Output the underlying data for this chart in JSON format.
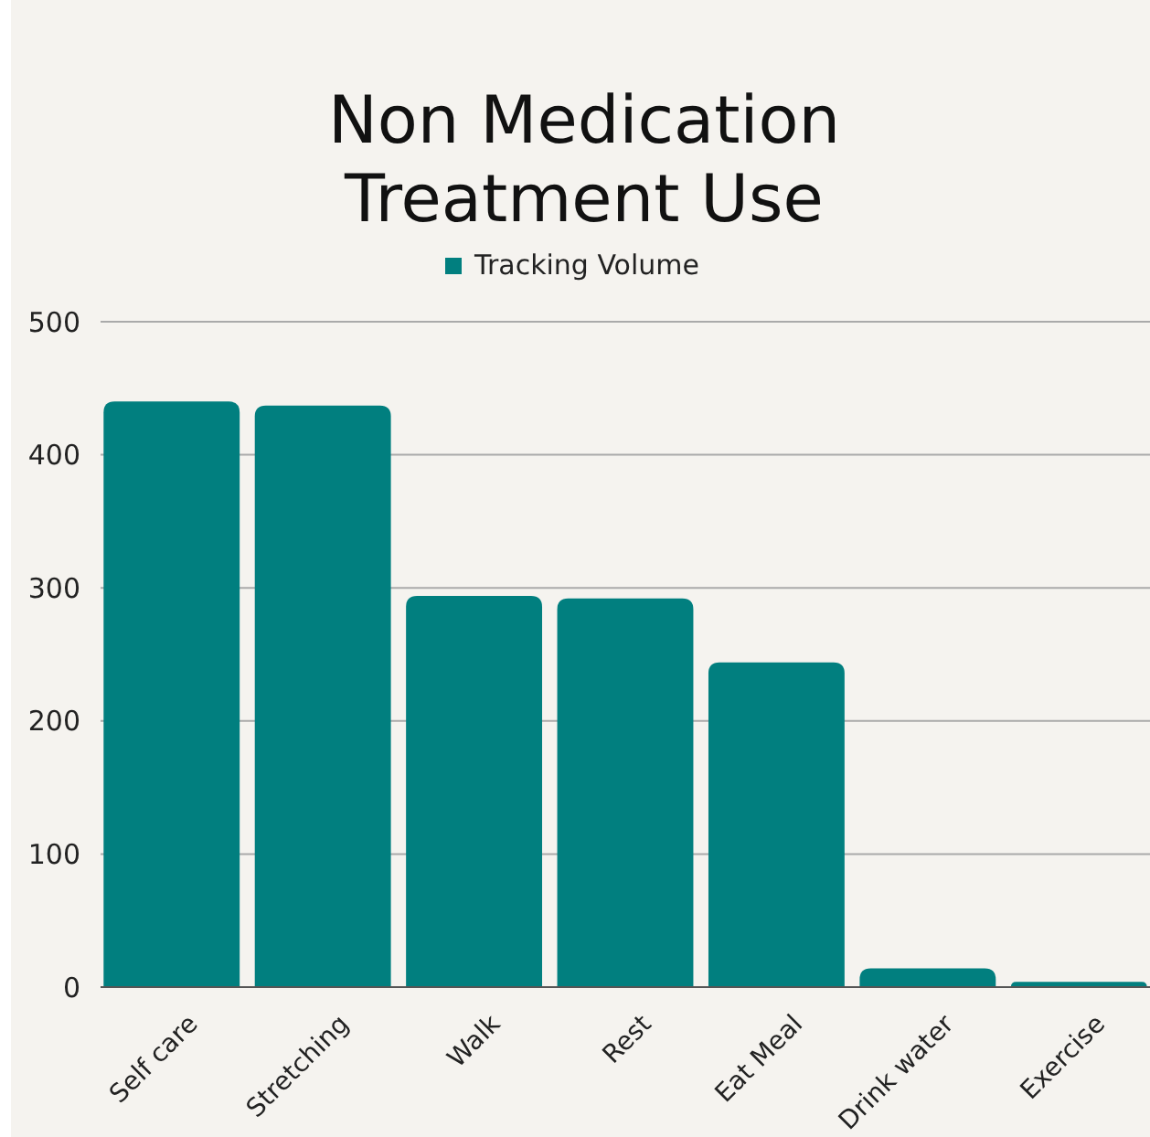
{
  "chart_data": {
    "type": "bar",
    "title": "Non Medication Treatment Use",
    "categories": [
      "Self care",
      "Stretching",
      "Walk",
      "Rest",
      "Eat Meal",
      "Drink water",
      "Exercise"
    ],
    "series": [
      {
        "name": "Tracking Volume",
        "color": "#017f7f",
        "values": [
          440,
          437,
          294,
          292,
          244,
          14,
          4
        ]
      }
    ],
    "ylim": [
      0,
      500
    ],
    "yticks": [
      0,
      100,
      200,
      300,
      400,
      500
    ],
    "grid": "y",
    "legend": "top"
  }
}
